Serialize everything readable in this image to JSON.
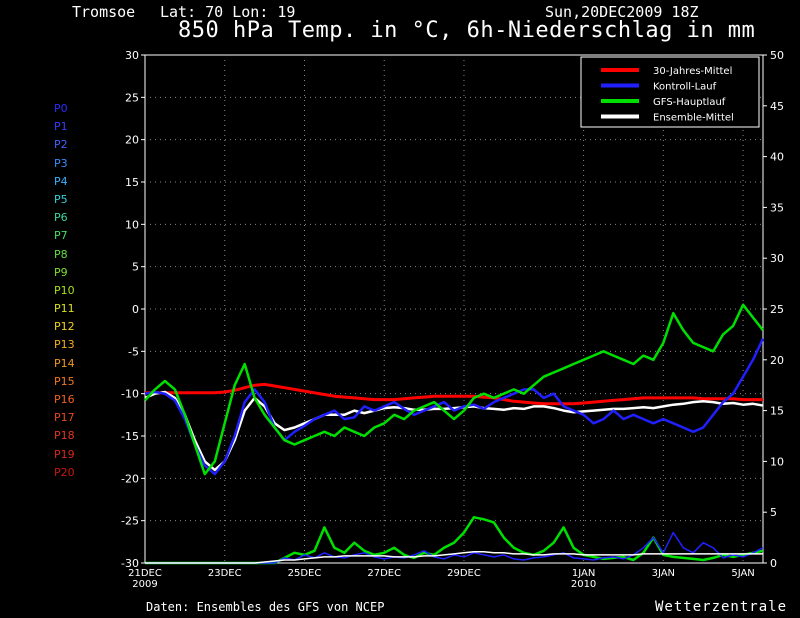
{
  "header": {
    "location": "Tromsoe",
    "coords": "Lat: 70 Lon: 19",
    "run": "Sun,20DEC2009 18Z"
  },
  "title": "850 hPa Temp. in °C, 6h-Niederschlag in mm",
  "footer": {
    "source": "Daten: Ensembles des GFS von NCEP",
    "brand": "Wetterzentrale"
  },
  "members": [
    {
      "label": "P0",
      "color": "#2b2bff"
    },
    {
      "label": "P1",
      "color": "#3a3aff"
    },
    {
      "label": "P2",
      "color": "#3f62ff"
    },
    {
      "label": "P3",
      "color": "#3a8cff"
    },
    {
      "label": "P4",
      "color": "#3ab0ff"
    },
    {
      "label": "P5",
      "color": "#38d0d8"
    },
    {
      "label": "P6",
      "color": "#38d8a0"
    },
    {
      "label": "P7",
      "color": "#48e060"
    },
    {
      "label": "P8",
      "color": "#60e040"
    },
    {
      "label": "P9",
      "color": "#80e030"
    },
    {
      "label": "P10",
      "color": "#a8e020"
    },
    {
      "label": "P11",
      "color": "#d8e020"
    },
    {
      "label": "P12",
      "color": "#f0d020"
    },
    {
      "label": "P13",
      "color": "#f0b020"
    },
    {
      "label": "P14",
      "color": "#f09820"
    },
    {
      "label": "P15",
      "color": "#f07820"
    },
    {
      "label": "P16",
      "color": "#f06020"
    },
    {
      "label": "P17",
      "color": "#e84820"
    },
    {
      "label": "P18",
      "color": "#e03820"
    },
    {
      "label": "P19",
      "color": "#d82818"
    },
    {
      "label": "P20",
      "color": "#c81810"
    }
  ],
  "chart_data": {
    "type": "line",
    "title": "850 hPa Temp. in °C, 6h-Niederschlag in mm",
    "x_start": "21DEC2009",
    "x_step_hours": 6,
    "x_ticks": [
      {
        "label": "21DEC",
        "sub": "2009",
        "day": 0
      },
      {
        "label": "23DEC",
        "sub": "",
        "day": 2
      },
      {
        "label": "25DEC",
        "sub": "",
        "day": 4
      },
      {
        "label": "27DEC",
        "sub": "",
        "day": 6
      },
      {
        "label": "29DEC",
        "sub": "",
        "day": 8
      },
      {
        "label": "1JAN",
        "sub": "2010",
        "day": 11
      },
      {
        "label": "3JAN",
        "sub": "",
        "day": 13
      },
      {
        "label": "5JAN",
        "sub": "",
        "day": 15
      }
    ],
    "x_range_days": [
      0,
      15.5
    ],
    "ylim_left": [
      -30,
      30
    ],
    "yticks_left": [
      "30",
      "25",
      "20",
      "15",
      "10",
      "5",
      "0",
      "-5",
      "-10",
      "-15",
      "-20",
      "-25",
      "-30"
    ],
    "ylim_right": [
      0,
      50
    ],
    "yticks_right": [
      "50",
      "45",
      "40",
      "35",
      "30",
      "25",
      "20",
      "15",
      "10",
      "5",
      "0"
    ],
    "grid": true,
    "legend_position": "top-right",
    "legend": [
      {
        "name": "30-Jahres-Mittel",
        "color": "#ff0000"
      },
      {
        "name": "Kontroll-Lauf",
        "color": "#2020ff"
      },
      {
        "name": "GFS-Hauptlauf",
        "color": "#00e000"
      },
      {
        "name": "Ensemble-Mittel",
        "color": "#ffffff"
      }
    ],
    "temp_series": [
      {
        "name": "30-Jahres-Mittel",
        "color": "#ff0000",
        "values": [
          -9.9,
          -9.9,
          -9.9,
          -9.9,
          -9.9,
          -9.9,
          -9.9,
          -9.9,
          -9.8,
          -9.6,
          -9.3,
          -9.0,
          -8.9,
          -9.1,
          -9.3,
          -9.5,
          -9.7,
          -9.9,
          -10.1,
          -10.3,
          -10.4,
          -10.5,
          -10.6,
          -10.7,
          -10.7,
          -10.7,
          -10.6,
          -10.5,
          -10.4,
          -10.3,
          -10.3,
          -10.3,
          -10.3,
          -10.3,
          -10.4,
          -10.5,
          -10.7,
          -10.9,
          -11.0,
          -11.1,
          -11.2,
          -11.2,
          -11.2,
          -11.2,
          -11.1,
          -11.0,
          -10.9,
          -10.8,
          -10.7,
          -10.6,
          -10.5,
          -10.5,
          -10.5,
          -10.5,
          -10.5,
          -10.5,
          -10.6,
          -10.6,
          -10.6,
          -10.6,
          -10.7,
          -10.7,
          -10.7
        ]
      },
      {
        "name": "Ensemble-Mittel",
        "color": "#ffffff",
        "values": [
          -10.5,
          -10.0,
          -9.8,
          -10.5,
          -12.5,
          -15.5,
          -18.0,
          -19.0,
          -18.0,
          -15.5,
          -12.0,
          -10.5,
          -11.5,
          -13.5,
          -14.3,
          -14.0,
          -13.5,
          -13.0,
          -12.5,
          -12.5,
          -12.5,
          -12.0,
          -12.3,
          -12.0,
          -11.7,
          -11.6,
          -11.7,
          -11.9,
          -11.9,
          -11.8,
          -11.8,
          -11.7,
          -11.6,
          -11.5,
          -11.7,
          -11.8,
          -11.9,
          -11.7,
          -11.8,
          -11.5,
          -11.5,
          -11.7,
          -12.0,
          -12.2,
          -12.1,
          -12.0,
          -11.9,
          -11.8,
          -11.8,
          -11.7,
          -11.6,
          -11.7,
          -11.5,
          -11.3,
          -11.2,
          -11.0,
          -10.9,
          -11.0,
          -11.2,
          -11.1,
          -11.3,
          -11.2,
          -11.4
        ]
      },
      {
        "name": "Kontroll-Lauf",
        "color": "#2020ff",
        "values": [
          -10.0,
          -9.8,
          -10.0,
          -10.8,
          -13.0,
          -16.0,
          -18.5,
          -19.5,
          -18.0,
          -15.0,
          -11.0,
          -9.5,
          -11.0,
          -14.0,
          -15.5,
          -14.5,
          -13.8,
          -13.0,
          -12.5,
          -12.0,
          -13.0,
          -12.8,
          -11.5,
          -12.0,
          -11.5,
          -11.0,
          -11.8,
          -12.5,
          -12.0,
          -11.5,
          -11.0,
          -12.0,
          -11.5,
          -11.3,
          -11.8,
          -11.0,
          -10.5,
          -10.0,
          -9.5,
          -9.5,
          -10.5,
          -10.0,
          -11.5,
          -12.0,
          -12.5,
          -13.5,
          -13.0,
          -12.0,
          -13.0,
          -12.5,
          -13.0,
          -13.5,
          -13.0,
          -13.5,
          -14.0,
          -14.5,
          -14.0,
          -12.5,
          -11.0,
          -10.0,
          -8.0,
          -6.0,
          -3.5
        ]
      },
      {
        "name": "GFS-Hauptlauf",
        "color": "#00e000",
        "values": [
          -10.8,
          -9.5,
          -8.5,
          -9.5,
          -12.5,
          -16.0,
          -19.5,
          -18.0,
          -13.5,
          -9.0,
          -6.5,
          -10.5,
          -12.5,
          -14.0,
          -15.5,
          -16.0,
          -15.5,
          -15.0,
          -14.5,
          -15.0,
          -14.0,
          -14.5,
          -15.0,
          -14.0,
          -13.5,
          -12.5,
          -13.0,
          -12.0,
          -11.5,
          -11.0,
          -12.0,
          -13.0,
          -12.0,
          -10.5,
          -10.0,
          -10.5,
          -10.0,
          -9.5,
          -10.0,
          -9.0,
          -8.0,
          -7.5,
          -7.0,
          -6.5,
          -6.0,
          -5.5,
          -5.0,
          -5.5,
          -6.0,
          -6.5,
          -5.5,
          -6.0,
          -4.0,
          -0.5,
          -2.5,
          -4.0,
          -4.5,
          -5.0,
          -3.0,
          -2.0,
          0.5,
          -1.0,
          -2.5
        ]
      }
    ],
    "precip_series": [
      {
        "name": "GFS-Hauptlauf",
        "color": "#00e000",
        "values": [
          0,
          0,
          0,
          0,
          0,
          0,
          0,
          0,
          0,
          0,
          0,
          0,
          0,
          0,
          0.5,
          1.0,
          0.8,
          1.2,
          3.5,
          1.5,
          1.0,
          2.0,
          1.2,
          0.8,
          1.0,
          1.5,
          0.8,
          0.5,
          1.0,
          0.8,
          1.5,
          2.0,
          3.0,
          4.5,
          4.3,
          4.0,
          2.5,
          1.5,
          1.0,
          0.8,
          1.2,
          2.0,
          3.5,
          1.5,
          0.8,
          0.6,
          0.4,
          0.5,
          0.6,
          0.3,
          1.0,
          2.5,
          0.8,
          0.6,
          0.5,
          0.4,
          0.3,
          0.5,
          0.8,
          0.6,
          0.8,
          1.0,
          1.2
        ]
      },
      {
        "name": "Kontroll-Lauf",
        "color": "#2020ff",
        "values": [
          0,
          0,
          0,
          0,
          0,
          0,
          0,
          0,
          0,
          0,
          0,
          0,
          0,
          0,
          0.5,
          0.3,
          0.8,
          0.5,
          1.0,
          0.6,
          0.5,
          0.8,
          1.0,
          0.6,
          0.4,
          0.6,
          0.5,
          0.8,
          1.2,
          0.6,
          0.4,
          0.8,
          0.6,
          1.0,
          0.8,
          0.6,
          0.8,
          0.4,
          0.3,
          0.5,
          0.6,
          0.8,
          1.0,
          0.5,
          0.4,
          0.3,
          0.5,
          0.6,
          0.4,
          0.8,
          1.5,
          2.5,
          1.0,
          3.0,
          1.5,
          1.0,
          2.0,
          1.5,
          0.5,
          0.8,
          0.6,
          1.0,
          1.5
        ]
      },
      {
        "name": "Ensemble-Mittel",
        "color": "#ffffff",
        "values": [
          0,
          0,
          0,
          0,
          0,
          0,
          0,
          0,
          0,
          0,
          0,
          0,
          0.1,
          0.2,
          0.3,
          0.3,
          0.4,
          0.5,
          0.6,
          0.6,
          0.7,
          0.7,
          0.7,
          0.7,
          0.7,
          0.6,
          0.6,
          0.6,
          0.7,
          0.7,
          0.8,
          0.9,
          1.0,
          1.1,
          1.1,
          1.0,
          1.0,
          0.9,
          0.9,
          0.8,
          0.8,
          0.9,
          0.9,
          0.9,
          0.8,
          0.8,
          0.8,
          0.8,
          0.8,
          0.8,
          0.9,
          0.9,
          0.9,
          0.9,
          0.9,
          0.9,
          0.9,
          0.9,
          0.9,
          0.9,
          0.9,
          0.9,
          0.9
        ]
      }
    ]
  }
}
